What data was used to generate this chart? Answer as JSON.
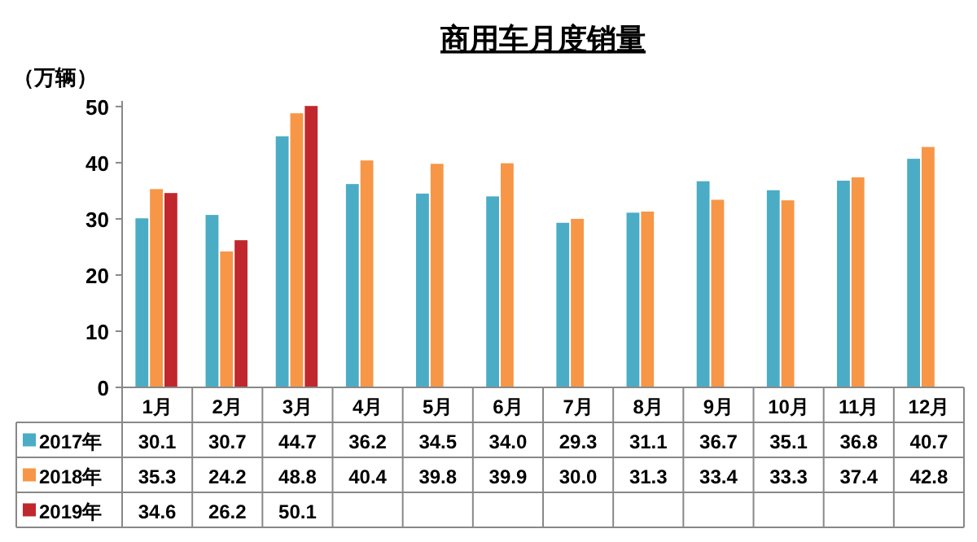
{
  "chart_data": {
    "type": "bar",
    "title": "商用车月度销量",
    "ylabel": "（万辆）",
    "categories": [
      "1月",
      "2月",
      "3月",
      "4月",
      "5月",
      "6月",
      "7月",
      "8月",
      "9月",
      "10月",
      "11月",
      "12月"
    ],
    "series": [
      {
        "name": "2017年",
        "color": "#4bacc6",
        "values": [
          30.1,
          30.7,
          44.7,
          36.2,
          34.5,
          34.0,
          29.3,
          31.1,
          36.7,
          35.1,
          36.8,
          40.7
        ],
        "value_labels": [
          "30.1",
          "30.7",
          "44.7",
          "36.2",
          "34.5",
          "34.0",
          "29.3",
          "31.1",
          "36.7",
          "35.1",
          "36.8",
          "40.7"
        ]
      },
      {
        "name": "2018年",
        "color": "#f79646",
        "values": [
          35.3,
          24.2,
          48.8,
          40.4,
          39.8,
          39.9,
          30.0,
          31.3,
          33.4,
          33.3,
          37.4,
          42.8
        ],
        "value_labels": [
          "35.3",
          "24.2",
          "48.8",
          "40.4",
          "39.8",
          "39.9",
          "30.0",
          "31.3",
          "33.4",
          "33.3",
          "37.4",
          "42.8"
        ]
      },
      {
        "name": "2019年",
        "color": "#c0282d",
        "values": [
          34.6,
          26.2,
          50.1,
          null,
          null,
          null,
          null,
          null,
          null,
          null,
          null,
          null
        ],
        "value_labels": [
          "34.6",
          "26.2",
          "50.1",
          null,
          null,
          null,
          null,
          null,
          null,
          null,
          null,
          null
        ]
      }
    ],
    "ylim": [
      0,
      51
    ],
    "yticks": [
      0,
      10,
      20,
      30,
      40,
      50
    ],
    "grid": false,
    "legend": "bottom"
  }
}
